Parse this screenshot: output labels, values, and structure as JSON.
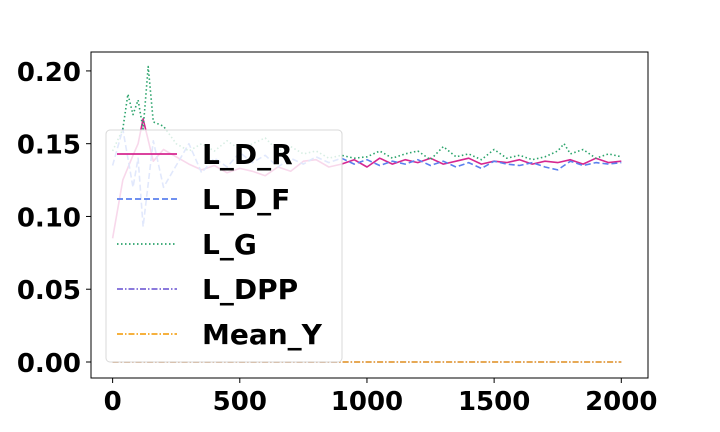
{
  "chart_data": {
    "type": "line",
    "title": "",
    "xlabel": "",
    "ylabel": "",
    "xlim": [
      -85,
      2105
    ],
    "ylim": [
      -0.011,
      0.213
    ],
    "xticks": [
      {
        "value": 0,
        "label": "0"
      },
      {
        "value": 500,
        "label": "500"
      },
      {
        "value": 1000,
        "label": "1000"
      },
      {
        "value": 1500,
        "label": "1500"
      },
      {
        "value": 2000,
        "label": "2000"
      }
    ],
    "yticks": [
      {
        "value": 0.0,
        "label": "0.00"
      },
      {
        "value": 0.05,
        "label": "0.05"
      },
      {
        "value": 0.1,
        "label": "0.10"
      },
      {
        "value": 0.15,
        "label": "0.15"
      },
      {
        "value": 0.2,
        "label": "0.20"
      }
    ],
    "grid": false,
    "legend_position": "center-left",
    "series": [
      {
        "name": "L_D_R",
        "color": "#d62790",
        "dash": "solid",
        "x": [
          0,
          40,
          80,
          100,
          120,
          160,
          200,
          250,
          300,
          350,
          400,
          450,
          500,
          550,
          600,
          650,
          700,
          750,
          800,
          850,
          900,
          950,
          1000,
          1050,
          1100,
          1150,
          1200,
          1250,
          1300,
          1350,
          1400,
          1450,
          1500,
          1550,
          1600,
          1650,
          1700,
          1750,
          1800,
          1850,
          1900,
          1950,
          2000
        ],
        "y": [
          0.085,
          0.125,
          0.142,
          0.15,
          0.167,
          0.138,
          0.146,
          0.141,
          0.136,
          0.132,
          0.135,
          0.13,
          0.133,
          0.131,
          0.128,
          0.134,
          0.131,
          0.138,
          0.139,
          0.134,
          0.136,
          0.139,
          0.134,
          0.14,
          0.136,
          0.139,
          0.137,
          0.14,
          0.136,
          0.138,
          0.14,
          0.136,
          0.138,
          0.137,
          0.139,
          0.136,
          0.138,
          0.137,
          0.139,
          0.136,
          0.14,
          0.137,
          0.138
        ]
      },
      {
        "name": "L_D_F",
        "color": "#5b80ee",
        "dash": "dashed",
        "x": [
          0,
          40,
          80,
          100,
          120,
          160,
          200,
          250,
          300,
          350,
          400,
          450,
          500,
          550,
          600,
          650,
          700,
          750,
          800,
          850,
          900,
          950,
          1000,
          1050,
          1100,
          1150,
          1200,
          1250,
          1300,
          1350,
          1400,
          1450,
          1500,
          1550,
          1600,
          1650,
          1700,
          1750,
          1800,
          1850,
          1900,
          1950,
          2000
        ],
        "y": [
          0.135,
          0.16,
          0.12,
          0.14,
          0.093,
          0.152,
          0.12,
          0.135,
          0.15,
          0.13,
          0.14,
          0.134,
          0.144,
          0.137,
          0.142,
          0.134,
          0.14,
          0.136,
          0.141,
          0.137,
          0.14,
          0.136,
          0.139,
          0.135,
          0.138,
          0.136,
          0.139,
          0.135,
          0.138,
          0.134,
          0.137,
          0.133,
          0.138,
          0.136,
          0.135,
          0.137,
          0.134,
          0.132,
          0.138,
          0.135,
          0.137,
          0.136,
          0.137
        ]
      },
      {
        "name": "L_G",
        "color": "#2aa36b",
        "dash": "dotted",
        "x": [
          0,
          40,
          60,
          80,
          100,
          120,
          140,
          160,
          200,
          250,
          300,
          350,
          400,
          450,
          500,
          550,
          600,
          650,
          700,
          750,
          800,
          850,
          900,
          950,
          1000,
          1050,
          1100,
          1150,
          1200,
          1250,
          1300,
          1350,
          1400,
          1450,
          1500,
          1550,
          1600,
          1650,
          1700,
          1750,
          1775,
          1800,
          1850,
          1900,
          1950,
          2000
        ],
        "y": [
          0.145,
          0.16,
          0.184,
          0.17,
          0.18,
          0.16,
          0.203,
          0.165,
          0.162,
          0.15,
          0.145,
          0.15,
          0.145,
          0.152,
          0.146,
          0.15,
          0.154,
          0.145,
          0.148,
          0.143,
          0.145,
          0.14,
          0.142,
          0.14,
          0.141,
          0.145,
          0.14,
          0.143,
          0.145,
          0.139,
          0.148,
          0.141,
          0.143,
          0.139,
          0.146,
          0.14,
          0.142,
          0.139,
          0.141,
          0.145,
          0.15,
          0.143,
          0.146,
          0.14,
          0.143,
          0.141
        ]
      },
      {
        "name": "L_DPP",
        "color": "#7b68d8",
        "dash": "dashdot",
        "x": [
          0,
          2000
        ],
        "y": [
          0.0,
          0.0
        ]
      },
      {
        "name": "Mean_Y",
        "color": "#f5a623",
        "dash": "dashdot",
        "x": [
          0,
          2000
        ],
        "y": [
          0.0,
          0.0
        ]
      }
    ]
  }
}
